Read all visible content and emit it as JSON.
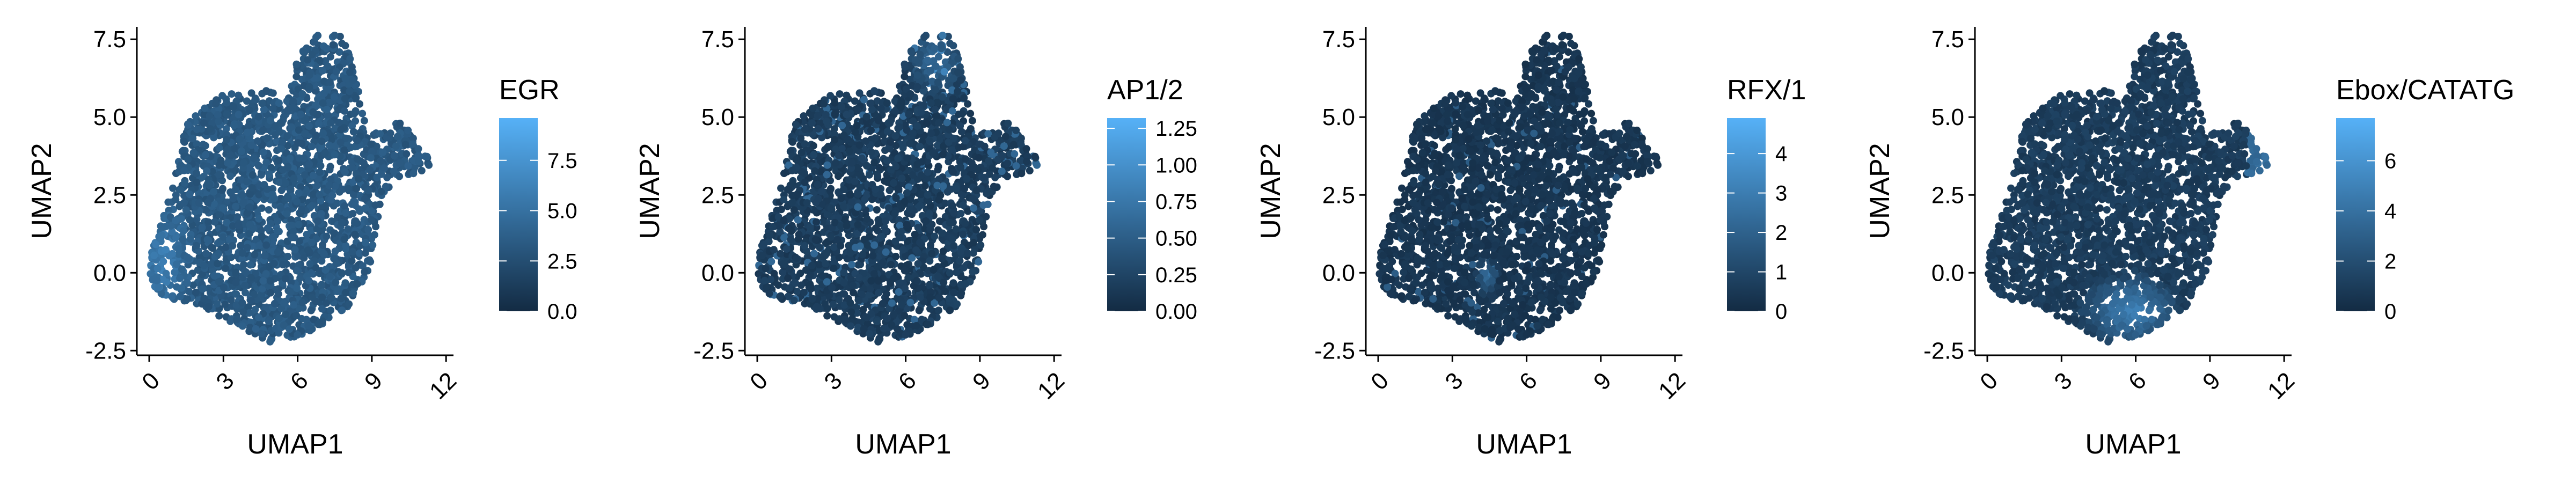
{
  "chart_data": [
    {
      "type": "scatter",
      "xlabel": "UMAP1",
      "ylabel": "UMAP2",
      "xlim": [
        -0.5,
        12.3
      ],
      "ylim": [
        -2.65,
        7.9
      ],
      "xticks": [
        0,
        3,
        6,
        9,
        12
      ],
      "xticklabels": [
        "0",
        "3",
        "6",
        "9",
        "12"
      ],
      "yticks": [
        -2.5,
        0.0,
        2.5,
        5.0,
        7.5
      ],
      "yticklabels": [
        "-2.5",
        "0.0",
        "2.5",
        "5.0",
        "7.5"
      ],
      "legend": {
        "title": "EGR",
        "position": "right",
        "min": 0.0,
        "max": 9.6,
        "ticks": [
          0.0,
          2.5,
          5.0,
          7.5
        ],
        "ticklabels": [
          "0.0",
          "2.5",
          "5.0",
          "7.5"
        ]
      },
      "colorscale": [
        "#132B43",
        "#56B1F7"
      ],
      "pattern": "egr",
      "grid": false
    },
    {
      "type": "scatter",
      "xlabel": "UMAP1",
      "ylabel": "UMAP2",
      "xlim": [
        -0.5,
        12.3
      ],
      "ylim": [
        -2.65,
        7.9
      ],
      "xticks": [
        0,
        3,
        6,
        9,
        12
      ],
      "xticklabels": [
        "0",
        "3",
        "6",
        "9",
        "12"
      ],
      "yticks": [
        -2.5,
        0.0,
        2.5,
        5.0,
        7.5
      ],
      "yticklabels": [
        "-2.5",
        "0.0",
        "2.5",
        "5.0",
        "7.5"
      ],
      "legend": {
        "title": "AP1/2",
        "position": "right",
        "min": 0.0,
        "max": 1.32,
        "ticks": [
          0.0,
          0.25,
          0.5,
          0.75,
          1.0,
          1.25
        ],
        "ticklabels": [
          "0.00",
          "0.25",
          "0.50",
          "0.75",
          "1.00",
          "1.25"
        ]
      },
      "colorscale": [
        "#132B43",
        "#56B1F7"
      ],
      "pattern": "ap1",
      "grid": false
    },
    {
      "type": "scatter",
      "xlabel": "UMAP1",
      "ylabel": "UMAP2",
      "xlim": [
        -0.5,
        12.3
      ],
      "ylim": [
        -2.65,
        7.9
      ],
      "xticks": [
        0,
        3,
        6,
        9,
        12
      ],
      "xticklabels": [
        "0",
        "3",
        "6",
        "9",
        "12"
      ],
      "yticks": [
        -2.5,
        0.0,
        2.5,
        5.0,
        7.5
      ],
      "yticklabels": [
        "-2.5",
        "0.0",
        "2.5",
        "5.0",
        "7.5"
      ],
      "legend": {
        "title": "RFX/1",
        "position": "right",
        "min": 0,
        "max": 4.9,
        "ticks": [
          0,
          1,
          2,
          3,
          4
        ],
        "ticklabels": [
          "0",
          "1",
          "2",
          "3",
          "4"
        ]
      },
      "colorscale": [
        "#132B43",
        "#56B1F7"
      ],
      "pattern": "rfx",
      "grid": false
    },
    {
      "type": "scatter",
      "xlabel": "UMAP1",
      "ylabel": "UMAP2",
      "xlim": [
        -0.5,
        12.3
      ],
      "ylim": [
        -2.65,
        7.9
      ],
      "xticks": [
        0,
        3,
        6,
        9,
        12
      ],
      "xticklabels": [
        "0",
        "3",
        "6",
        "9",
        "12"
      ],
      "yticks": [
        -2.5,
        0.0,
        2.5,
        5.0,
        7.5
      ],
      "yticklabels": [
        "-2.5",
        "0.0",
        "2.5",
        "5.0",
        "7.5"
      ],
      "legend": {
        "title": "Ebox/CATATG",
        "position": "right",
        "min": 0,
        "max": 7.7,
        "ticks": [
          0,
          2,
          4,
          6
        ],
        "ticklabels": [
          "0",
          "2",
          "4",
          "6"
        ]
      },
      "colorscale": [
        "#132B43",
        "#56B1F7"
      ],
      "pattern": "ebox",
      "grid": false
    }
  ]
}
